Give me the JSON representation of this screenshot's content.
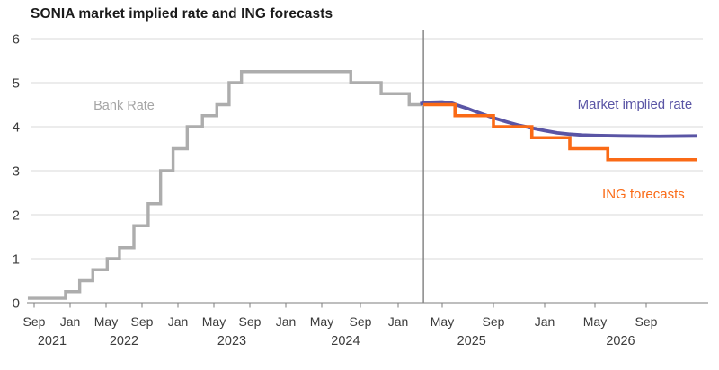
{
  "chart_data": {
    "type": "line",
    "title": "SONIA market implied rate and ING forecasts",
    "xlabel": "",
    "ylabel": "",
    "ylim": [
      0,
      6
    ],
    "yticks": [
      0,
      1,
      2,
      3,
      4,
      5,
      6
    ],
    "grid": "horizontal",
    "legend_position": "inline-labels",
    "x_ticks": [
      {
        "t": "2021-09",
        "label": "Sep"
      },
      {
        "t": "2022-01",
        "label": "Jan"
      },
      {
        "t": "2022-05",
        "label": "May"
      },
      {
        "t": "2022-09",
        "label": "Sep"
      },
      {
        "t": "2023-01",
        "label": "Jan"
      },
      {
        "t": "2023-05",
        "label": "May"
      },
      {
        "t": "2023-09",
        "label": "Sep"
      },
      {
        "t": "2024-01",
        "label": "Jan"
      },
      {
        "t": "2024-05",
        "label": "May"
      },
      {
        "t": "2024-09",
        "label": "Sep"
      },
      {
        "t": "2025-01",
        "label": "Jan"
      },
      {
        "t": "2025-05",
        "label": "May"
      },
      {
        "t": "2025-09",
        "label": "Sep"
      },
      {
        "t": "2026-01",
        "label": "Jan"
      },
      {
        "t": "2026-05",
        "label": "May"
      },
      {
        "t": "2026-09",
        "label": "Sep"
      }
    ],
    "year_labels": [
      {
        "t": "2021-11-01",
        "label": "2021"
      },
      {
        "t": "2022-07-01",
        "label": "2022"
      },
      {
        "t": "2023-07-01",
        "label": "2023"
      },
      {
        "t": "2024-07-15",
        "label": "2024"
      },
      {
        "t": "2025-07-10",
        "label": "2025"
      },
      {
        "t": "2026-07-01",
        "label": "2026"
      }
    ],
    "divider": {
      "t": "2025-03-10",
      "color": "#878787"
    },
    "series": [
      {
        "name": "Bank Rate",
        "style": "step",
        "color": "#adadad",
        "width": 3.4,
        "end_t": "2025-03-12",
        "points": [
          [
            "2021-08-10",
            0.1
          ],
          [
            "2021-12-16",
            0.25
          ],
          [
            "2022-02-03",
            0.5
          ],
          [
            "2022-03-17",
            0.75
          ],
          [
            "2022-05-05",
            1.0
          ],
          [
            "2022-06-16",
            1.25
          ],
          [
            "2022-08-04",
            1.75
          ],
          [
            "2022-09-22",
            2.25
          ],
          [
            "2022-11-03",
            3.0
          ],
          [
            "2022-12-15",
            3.5
          ],
          [
            "2023-02-02",
            4.0
          ],
          [
            "2023-03-23",
            4.25
          ],
          [
            "2023-05-11",
            4.5
          ],
          [
            "2023-06-22",
            5.0
          ],
          [
            "2023-08-03",
            5.25
          ],
          [
            "2024-08-01",
            5.0
          ],
          [
            "2024-11-07",
            4.75
          ],
          [
            "2025-02-01",
            4.5
          ]
        ]
      },
      {
        "name": "Market implied rate",
        "style": "line",
        "color": "#5a55a5",
        "width": 3.8,
        "points": [
          [
            "2025-03-01",
            4.52
          ],
          [
            "2025-03-20",
            4.55
          ],
          [
            "2025-05-01",
            4.56
          ],
          [
            "2025-05-25",
            4.53
          ],
          [
            "2025-06-15",
            4.46
          ],
          [
            "2025-07-01",
            4.41
          ],
          [
            "2025-07-20",
            4.34
          ],
          [
            "2025-08-10",
            4.27
          ],
          [
            "2025-09-01",
            4.2
          ],
          [
            "2025-10-01",
            4.11
          ],
          [
            "2025-11-01",
            4.03
          ],
          [
            "2025-12-01",
            3.97
          ],
          [
            "2026-01-01",
            3.91
          ],
          [
            "2026-02-01",
            3.86
          ],
          [
            "2026-03-01",
            3.83
          ],
          [
            "2026-04-01",
            3.81
          ],
          [
            "2026-05-01",
            3.8
          ],
          [
            "2026-07-01",
            3.79
          ],
          [
            "2026-10-01",
            3.78
          ],
          [
            "2027-01-01",
            3.79
          ]
        ]
      },
      {
        "name": "ING forecasts",
        "style": "step",
        "color": "#fa6a16",
        "width": 3.6,
        "end_t": "2027-01-01",
        "points": [
          [
            "2025-03-10",
            4.5
          ],
          [
            "2025-06-01",
            4.25
          ],
          [
            "2025-09-01",
            4.0
          ],
          [
            "2025-12-01",
            3.75
          ],
          [
            "2026-03-01",
            3.5
          ],
          [
            "2026-06-01",
            3.25
          ]
        ]
      }
    ],
    "annotations": [
      {
        "text": "Bank Rate",
        "color": "#a5a5a5",
        "t": "2022-07-01",
        "v": 4.39,
        "anchor": "middle",
        "size": 14.5
      },
      {
        "text": "Market implied rate",
        "color": "#5a55a5",
        "t": "2026-12-19",
        "v": 4.41,
        "anchor": "end",
        "size": 15
      },
      {
        "text": "ING forecasts",
        "color": "#fa6a16",
        "t": "2026-12-01",
        "v": 2.37,
        "anchor": "end",
        "size": 15
      }
    ],
    "colors": {
      "title_text": "#1a1a1a",
      "tick_text": "#3b3b3b",
      "gridline": "#dadada",
      "axis_line": "#7d7d7d"
    }
  }
}
